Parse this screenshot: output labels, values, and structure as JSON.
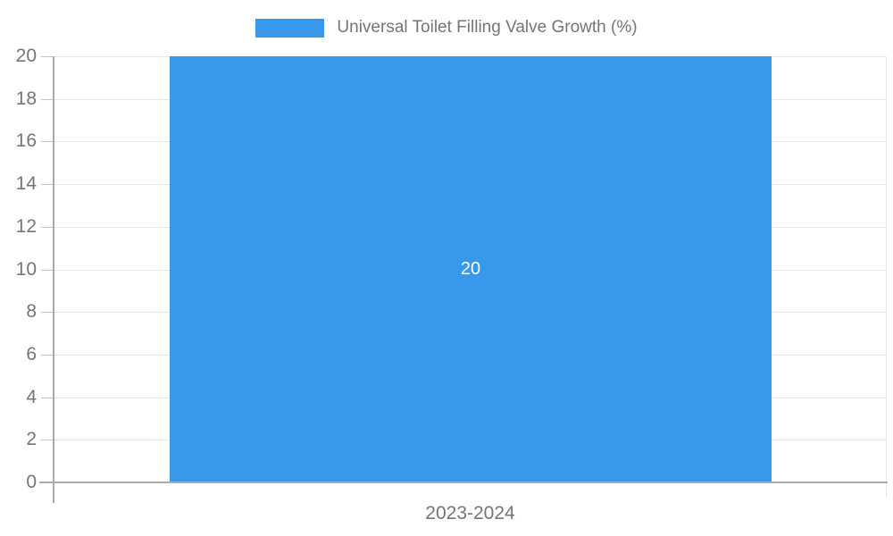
{
  "chart_data": {
    "type": "bar",
    "categories": [
      "2023-2024"
    ],
    "series": [
      {
        "name": "Universal Toilet Filling Valve Growth (%)",
        "values": [
          20
        ]
      }
    ],
    "data_labels": [
      "20"
    ],
    "title": "",
    "xlabel": "",
    "ylabel": "",
    "ylim": [
      0,
      20
    ],
    "yticks": [
      0,
      2,
      4,
      6,
      8,
      10,
      12,
      14,
      16,
      18,
      20
    ],
    "grid": true,
    "legend_position": "top",
    "colors": {
      "bar": "#3899ec",
      "grid": "#e6e6e6",
      "axis": "#ababab",
      "text": "#757575",
      "data_label": "#ffffff",
      "background": "#ffffff"
    }
  }
}
